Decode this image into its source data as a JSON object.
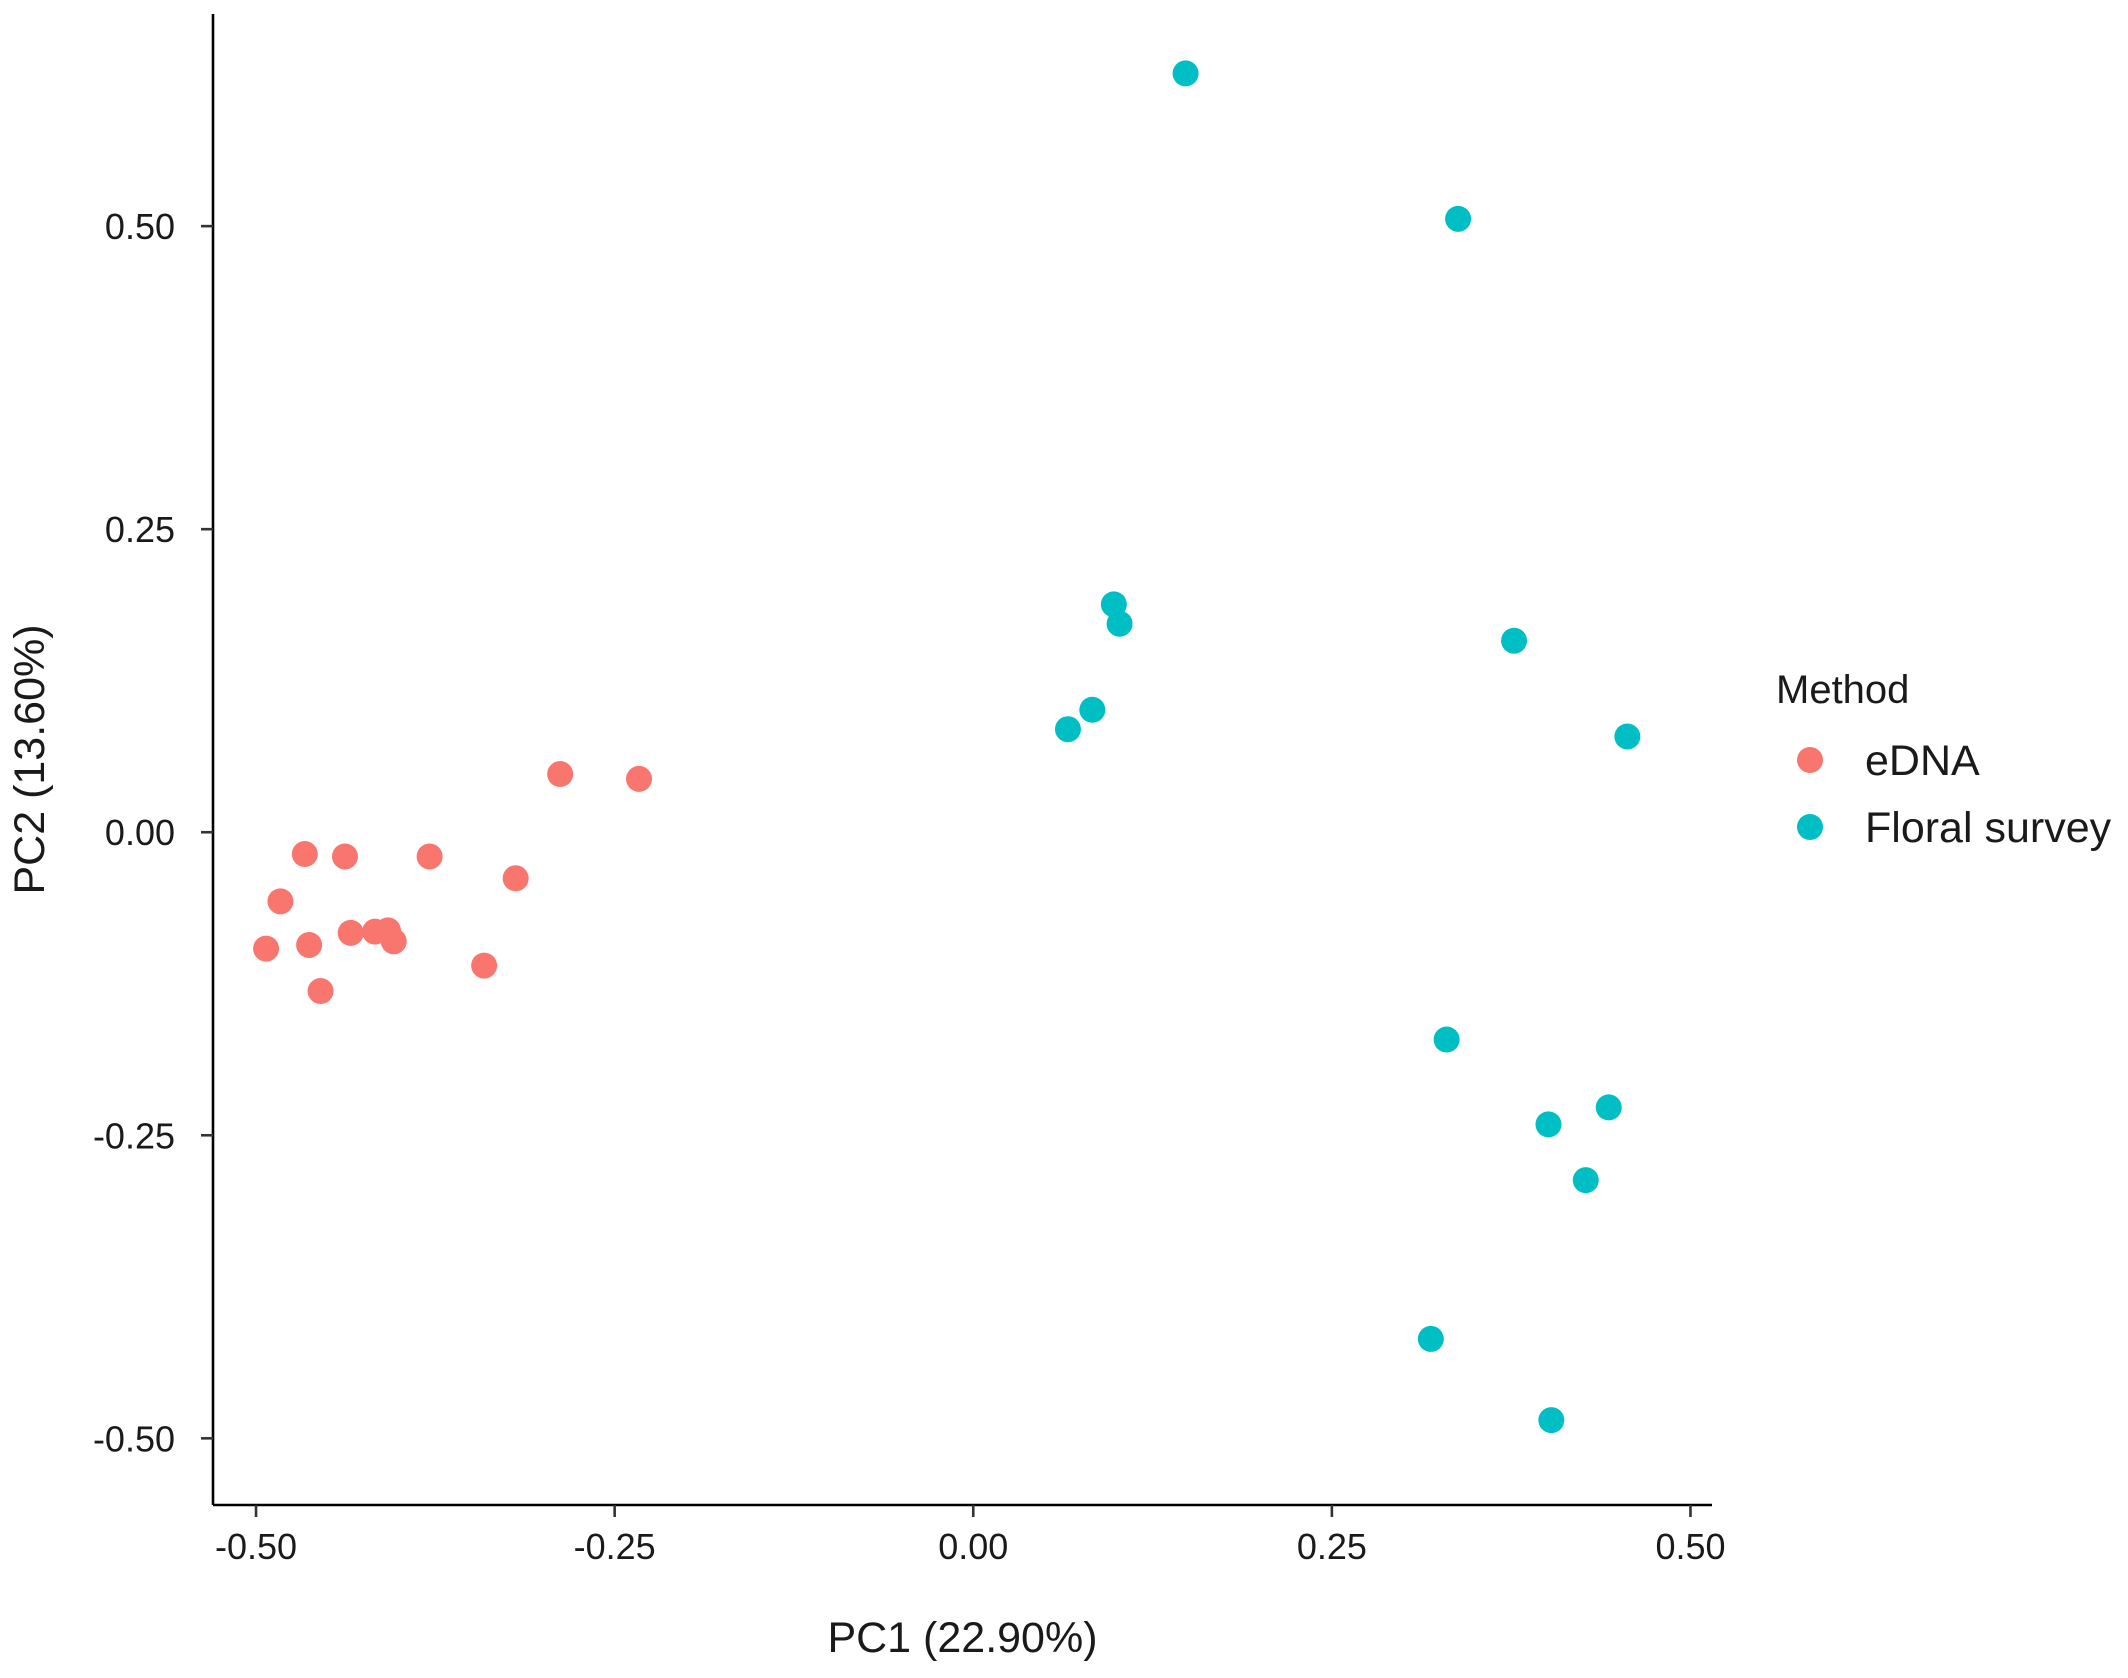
{
  "colors": {
    "edna": "#F8766D",
    "floral": "#00BFC4"
  },
  "chart_data": {
    "type": "scatter",
    "xlabel": "PC1 (22.90%)",
    "ylabel": "PC2 (13.60%)",
    "xlim": [
      -0.53,
      0.515
    ],
    "ylim": [
      -0.555,
      0.675
    ],
    "xticks": [
      {
        "value": -0.5,
        "label": "-0.50"
      },
      {
        "value": -0.25,
        "label": "-0.25"
      },
      {
        "value": 0.0,
        "label": "0.00"
      },
      {
        "value": 0.25,
        "label": "0.25"
      },
      {
        "value": 0.5,
        "label": "0.50"
      }
    ],
    "yticks": [
      {
        "value": -0.5,
        "label": "-0.50"
      },
      {
        "value": -0.25,
        "label": "-0.25"
      },
      {
        "value": 0.0,
        "label": "0.00"
      },
      {
        "value": 0.25,
        "label": "0.25"
      },
      {
        "value": 0.5,
        "label": "0.50"
      }
    ],
    "grid": false,
    "legend": {
      "title": "Method",
      "placement": "right"
    },
    "series": [
      {
        "name": "eDNA",
        "color": "#F8766D",
        "points": [
          {
            "x": -0.288,
            "y": 0.048
          },
          {
            "x": -0.233,
            "y": 0.044
          },
          {
            "x": -0.466,
            "y": -0.018
          },
          {
            "x": -0.438,
            "y": -0.02
          },
          {
            "x": -0.379,
            "y": -0.02
          },
          {
            "x": -0.319,
            "y": -0.038
          },
          {
            "x": -0.483,
            "y": -0.057
          },
          {
            "x": -0.434,
            "y": -0.083
          },
          {
            "x": -0.417,
            "y": -0.082
          },
          {
            "x": -0.408,
            "y": -0.081
          },
          {
            "x": -0.404,
            "y": -0.09
          },
          {
            "x": -0.493,
            "y": -0.096
          },
          {
            "x": -0.463,
            "y": -0.093
          },
          {
            "x": -0.341,
            "y": -0.11
          },
          {
            "x": -0.455,
            "y": -0.131
          }
        ]
      },
      {
        "name": "Floral survey",
        "color": "#00BFC4",
        "points": [
          {
            "x": 0.148,
            "y": 0.626
          },
          {
            "x": 0.338,
            "y": 0.506
          },
          {
            "x": 0.098,
            "y": 0.188
          },
          {
            "x": 0.102,
            "y": 0.172
          },
          {
            "x": 0.377,
            "y": 0.158
          },
          {
            "x": 0.083,
            "y": 0.101
          },
          {
            "x": 0.066,
            "y": 0.085
          },
          {
            "x": 0.456,
            "y": 0.079
          },
          {
            "x": 0.33,
            "y": -0.171
          },
          {
            "x": 0.443,
            "y": -0.227
          },
          {
            "x": 0.401,
            "y": -0.241
          },
          {
            "x": 0.427,
            "y": -0.287
          },
          {
            "x": 0.319,
            "y": -0.418
          },
          {
            "x": 0.403,
            "y": -0.485
          }
        ]
      }
    ]
  }
}
